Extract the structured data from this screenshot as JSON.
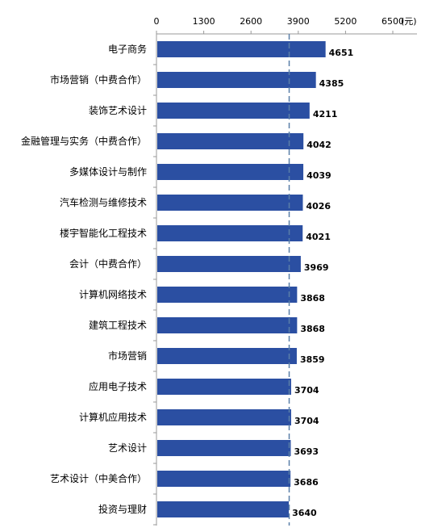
{
  "chart_data": {
    "type": "bar",
    "orientation": "horizontal",
    "unit": "(元)",
    "xlim": [
      0,
      6500
    ],
    "xticks": [
      "0",
      "1300",
      "2600",
      "3900",
      "5200",
      "6500"
    ],
    "xtick_values": [
      0,
      1300,
      2600,
      3900,
      5200,
      6500
    ],
    "reference_line": 3650,
    "categories": [
      "电子商务",
      "市场营销（中费合作）",
      "装饰艺术设计",
      "金融管理与实务（中费合作）",
      "多媒体设计与制作",
      "汽车检测与维修技术",
      "楼宇智能化工程技术",
      "会计（中费合作）",
      "计算机网络技术",
      "建筑工程技术",
      "市场营销",
      "应用电子技术",
      "计算机应用技术",
      "艺术设计",
      "艺术设计（中美合作）",
      "投资与理财"
    ],
    "values": [
      4651,
      4385,
      4211,
      4042,
      4039,
      4026,
      4021,
      3969,
      3868,
      3868,
      3859,
      3704,
      3704,
      3693,
      3686,
      3640
    ],
    "value_labels": [
      "4651",
      "4385",
      "4211",
      "4042",
      "4039",
      "4026",
      "4021",
      "3969",
      "3868",
      "3868",
      "3859",
      "3704",
      "3704",
      "3693",
      "3686",
      "3640"
    ],
    "bar_color": "#2B4FA2",
    "reference_line_color": "#5A7FA8",
    "grid": false,
    "legend": "none"
  }
}
